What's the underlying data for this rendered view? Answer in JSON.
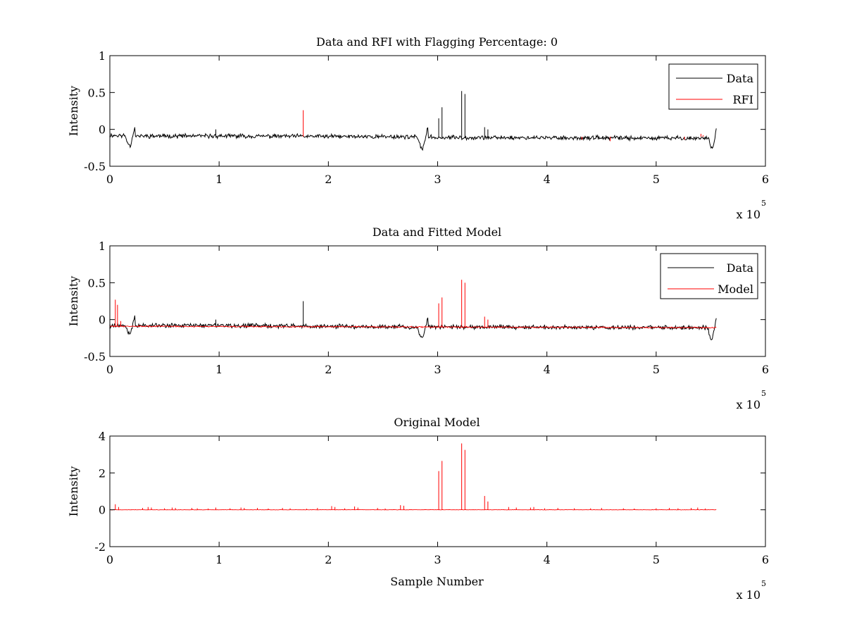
{
  "chart_data": [
    {
      "type": "line",
      "title": "Data and RFI with Flagging Percentage: 0",
      "xlabel": "",
      "ylabel": "Intensity",
      "xlim": [
        0,
        600000
      ],
      "ylim": [
        -0.5,
        1
      ],
      "xticks": [
        0,
        1,
        2,
        3,
        4,
        5,
        6
      ],
      "xticklabels": [
        "0",
        "1",
        "2",
        "3",
        "4",
        "5",
        "6"
      ],
      "yticks": [
        -0.5,
        0,
        0.5,
        1
      ],
      "yticklabels": [
        "-0.5",
        "0",
        "0.5",
        "1"
      ],
      "x_multiplier": "x 10",
      "x_multiplier_exponent": "5",
      "legend_position": "top-right",
      "series": [
        {
          "name": "Data",
          "color": "#000000",
          "baseline": [
            [
              0,
              -0.08
            ],
            [
              25000,
              -0.09
            ],
            [
              100000,
              -0.09
            ],
            [
              280000,
              -0.1
            ],
            [
              300000,
              -0.11
            ],
            [
              550000,
              -0.12
            ],
            [
              555000,
              -0.11
            ]
          ],
          "dips": [
            {
              "x0": 14000,
              "x1": 23000,
              "min": -0.22,
              "rebound": 0.05
            },
            {
              "x0": 281000,
              "x1": 291000,
              "min": -0.26,
              "rebound": 0.03
            },
            {
              "x0": 548000,
              "x1": 555000,
              "min": -0.27,
              "rebound": 0.01
            }
          ],
          "spikes": [
            [
              97000,
              0.0
            ],
            [
              301000,
              0.15
            ],
            [
              304000,
              0.3
            ],
            [
              322000,
              0.52
            ],
            [
              325000,
              0.48
            ],
            [
              343000,
              0.03
            ],
            [
              346000,
              0.0
            ]
          ]
        },
        {
          "name": "RFI",
          "color": "#ff0000",
          "spikes": [
            [
              177000,
              0.26
            ],
            [
              432000,
              -0.14
            ],
            [
              458000,
              -0.16
            ],
            [
              526000,
              -0.14
            ],
            [
              541000,
              -0.06
            ],
            [
              543000,
              -0.08
            ]
          ]
        }
      ]
    },
    {
      "type": "line",
      "title": "Data and Fitted Model",
      "xlabel": "",
      "ylabel": "Intensity",
      "xlim": [
        0,
        600000
      ],
      "ylim": [
        -0.5,
        1
      ],
      "xticks": [
        0,
        1,
        2,
        3,
        4,
        5,
        6
      ],
      "xticklabels": [
        "0",
        "1",
        "2",
        "3",
        "4",
        "5",
        "6"
      ],
      "yticks": [
        -0.5,
        0,
        0.5,
        1
      ],
      "yticklabels": [
        "-0.5",
        "0",
        "0.5",
        "1"
      ],
      "x_multiplier": "x 10",
      "x_multiplier_exponent": "5",
      "legend_position": "top-right",
      "series": [
        {
          "name": "Data",
          "color": "#000000",
          "baseline": [
            [
              0,
              -0.08
            ],
            [
              25000,
              -0.08
            ],
            [
              100000,
              -0.08
            ],
            [
              280000,
              -0.1
            ],
            [
              300000,
              -0.1
            ],
            [
              550000,
              -0.11
            ],
            [
              555000,
              -0.1
            ]
          ],
          "dips": [
            {
              "x0": 14000,
              "x1": 23000,
              "min": -0.2,
              "rebound": 0.06
            },
            {
              "x0": 281000,
              "x1": 291000,
              "min": -0.26,
              "rebound": 0.03
            },
            {
              "x0": 547000,
              "x1": 555000,
              "min": -0.27,
              "rebound": 0.01
            }
          ],
          "spikes": [
            [
              97000,
              0.0
            ],
            [
              177000,
              0.25
            ]
          ]
        },
        {
          "name": "Model",
          "color": "#ff0000",
          "baseline": [
            [
              0,
              -0.09
            ],
            [
              555000,
              -0.11
            ]
          ],
          "spikes": [
            [
              5000,
              0.27
            ],
            [
              7000,
              0.2
            ],
            [
              10000,
              -0.02
            ],
            [
              301000,
              0.22
            ],
            [
              304000,
              0.3
            ],
            [
              322000,
              0.54
            ],
            [
              325000,
              0.5
            ],
            [
              343000,
              0.04
            ],
            [
              346000,
              0.0
            ]
          ]
        }
      ]
    },
    {
      "type": "line",
      "title": "Original Model",
      "xlabel": "Sample Number",
      "ylabel": "Intensity",
      "xlim": [
        0,
        600000
      ],
      "ylim": [
        -2,
        4
      ],
      "xticks": [
        0,
        1,
        2,
        3,
        4,
        5,
        6
      ],
      "xticklabels": [
        "0",
        "1",
        "2",
        "3",
        "4",
        "5",
        "6"
      ],
      "yticks": [
        -2,
        0,
        2,
        4
      ],
      "yticklabels": [
        "-2",
        "0",
        "2",
        "4"
      ],
      "x_multiplier": "x 10",
      "x_multiplier_exponent": "5",
      "series": [
        {
          "color": "#ff0000",
          "baseline": [
            [
              0,
              0
            ],
            [
              555000,
              0
            ]
          ],
          "spikes": [
            [
              5000,
              0.3
            ],
            [
              8000,
              0.15
            ],
            [
              30000,
              0.1
            ],
            [
              35000,
              0.15
            ],
            [
              38000,
              0.12
            ],
            [
              50000,
              0.08
            ],
            [
              57000,
              0.12
            ],
            [
              60000,
              0.1
            ],
            [
              75000,
              0.1
            ],
            [
              80000,
              0.08
            ],
            [
              90000,
              0.07
            ],
            [
              97000,
              0.12
            ],
            [
              110000,
              0.08
            ],
            [
              120000,
              0.12
            ],
            [
              123000,
              0.1
            ],
            [
              135000,
              0.1
            ],
            [
              145000,
              0.07
            ],
            [
              158000,
              0.1
            ],
            [
              165000,
              0.08
            ],
            [
              180000,
              0.06
            ],
            [
              190000,
              0.1
            ],
            [
              203000,
              0.2
            ],
            [
              206000,
              0.15
            ],
            [
              215000,
              0.08
            ],
            [
              224000,
              0.18
            ],
            [
              227000,
              0.12
            ],
            [
              245000,
              0.1
            ],
            [
              252000,
              0.07
            ],
            [
              266000,
              0.25
            ],
            [
              269000,
              0.22
            ],
            [
              301000,
              2.1
            ],
            [
              304000,
              2.65
            ],
            [
              322000,
              3.6
            ],
            [
              325000,
              3.25
            ],
            [
              343000,
              0.75
            ],
            [
              346000,
              0.45
            ],
            [
              365000,
              0.15
            ],
            [
              372000,
              0.12
            ],
            [
              385000,
              0.12
            ],
            [
              388000,
              0.15
            ],
            [
              398000,
              0.08
            ],
            [
              410000,
              0.1
            ],
            [
              425000,
              0.08
            ],
            [
              440000,
              0.08
            ],
            [
              450000,
              0.1
            ],
            [
              470000,
              0.08
            ],
            [
              480000,
              0.07
            ],
            [
              500000,
              0.08
            ],
            [
              512000,
              0.1
            ],
            [
              520000,
              0.08
            ],
            [
              532000,
              0.1
            ],
            [
              538000,
              0.12
            ],
            [
              545000,
              0.07
            ]
          ]
        }
      ]
    }
  ]
}
